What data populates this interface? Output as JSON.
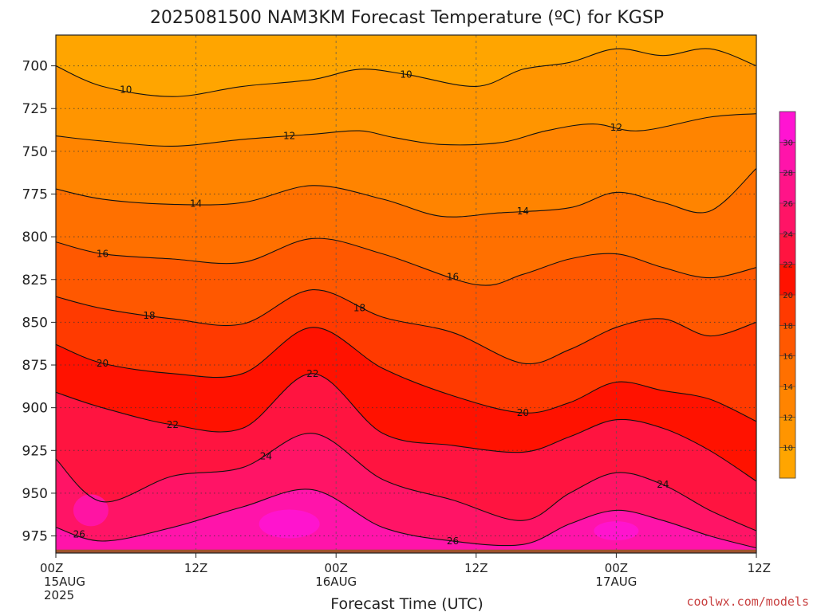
{
  "chart_data": {
    "type": "heatmap",
    "title": "2025081500 NAM3KM Forecast Temperature (ºC) for KGSP",
    "xlabel": "Forecast Time (UTC)",
    "ylabel": "",
    "credit": "coolwx.com/models",
    "y_axis": {
      "inverted": true,
      "range": [
        682,
        985
      ],
      "ticks": [
        "700",
        "725",
        "750",
        "775",
        "800",
        "825",
        "850",
        "875",
        "900",
        "925",
        "950",
        "975"
      ]
    },
    "x_axis": {
      "range_hours": [
        0,
        60
      ],
      "ticks": [
        {
          "hour": 0,
          "line1": "00Z",
          "line2": "15AUG",
          "line3": "2025"
        },
        {
          "hour": 12,
          "line1": "12Z",
          "line2": "",
          "line3": ""
        },
        {
          "hour": 24,
          "line1": "00Z",
          "line2": "16AUG",
          "line3": ""
        },
        {
          "hour": 36,
          "line1": "12Z",
          "line2": "",
          "line3": ""
        },
        {
          "hour": 48,
          "line1": "00Z",
          "line2": "17AUG",
          "line3": ""
        },
        {
          "hour": 60,
          "line1": "12Z",
          "line2": "",
          "line3": ""
        }
      ]
    },
    "grid": true,
    "colorbar": {
      "placement": "right",
      "levels": [
        8,
        10,
        12,
        14,
        16,
        18,
        20,
        22,
        24,
        26,
        28,
        30,
        32
      ],
      "tick_labels": [
        "10",
        "12",
        "14",
        "16",
        "18",
        "20",
        "22",
        "24",
        "26",
        "28",
        "30"
      ],
      "colors": [
        "#ffa500",
        "#ff9500",
        "#ff8400",
        "#ff7000",
        "#ff5800",
        "#ff3a00",
        "#ff1200",
        "#ff1440",
        "#ff1466",
        "#ff1488",
        "#ff14aa",
        "#ff14d2"
      ]
    },
    "surface_color": "#a0522d",
    "isotherms": [
      {
        "label": "10",
        "values": [
          [
            0,
            700
          ],
          [
            4,
            712
          ],
          [
            10,
            718
          ],
          [
            16,
            712
          ],
          [
            22,
            708
          ],
          [
            26,
            702
          ],
          [
            30,
            705
          ],
          [
            36,
            712
          ],
          [
            40,
            702
          ],
          [
            44,
            698
          ],
          [
            48,
            690
          ],
          [
            52,
            694
          ],
          [
            56,
            690
          ],
          [
            60,
            700
          ]
        ]
      },
      {
        "label": "12",
        "values": [
          [
            0,
            741
          ],
          [
            4,
            744
          ],
          [
            10,
            747
          ],
          [
            16,
            743
          ],
          [
            22,
            740
          ],
          [
            26,
            738
          ],
          [
            29,
            742
          ],
          [
            33,
            746
          ],
          [
            38,
            745
          ],
          [
            42,
            738
          ],
          [
            46,
            734
          ],
          [
            50,
            738
          ],
          [
            56,
            730
          ],
          [
            60,
            728
          ]
        ]
      },
      {
        "label": "14",
        "values": [
          [
            0,
            772
          ],
          [
            4,
            778
          ],
          [
            10,
            781
          ],
          [
            16,
            780
          ],
          [
            22,
            770
          ],
          [
            28,
            778
          ],
          [
            33,
            788
          ],
          [
            38,
            786
          ],
          [
            44,
            783
          ],
          [
            48,
            774
          ],
          [
            52,
            780
          ],
          [
            56,
            785
          ],
          [
            60,
            760
          ]
        ]
      },
      {
        "label": "16",
        "values": [
          [
            0,
            803
          ],
          [
            4,
            810
          ],
          [
            10,
            813
          ],
          [
            16,
            815
          ],
          [
            22,
            801
          ],
          [
            28,
            810
          ],
          [
            36,
            828
          ],
          [
            40,
            822
          ],
          [
            44,
            813
          ],
          [
            48,
            810
          ],
          [
            52,
            818
          ],
          [
            56,
            824
          ],
          [
            60,
            818
          ]
        ]
      },
      {
        "label": "18",
        "values": [
          [
            0,
            835
          ],
          [
            4,
            842
          ],
          [
            10,
            848
          ],
          [
            16,
            851
          ],
          [
            22,
            831
          ],
          [
            28,
            847
          ],
          [
            34,
            856
          ],
          [
            40,
            874
          ],
          [
            44,
            866
          ],
          [
            48,
            853
          ],
          [
            52,
            848
          ],
          [
            56,
            858
          ],
          [
            60,
            850
          ]
        ]
      },
      {
        "label": "20",
        "values": [
          [
            0,
            863
          ],
          [
            4,
            874
          ],
          [
            10,
            880
          ],
          [
            16,
            880
          ],
          [
            22,
            853
          ],
          [
            28,
            877
          ],
          [
            34,
            893
          ],
          [
            40,
            903
          ],
          [
            44,
            897
          ],
          [
            48,
            885
          ],
          [
            52,
            890
          ],
          [
            56,
            895
          ],
          [
            60,
            908
          ]
        ]
      },
      {
        "label": "22",
        "values": [
          [
            0,
            891
          ],
          [
            4,
            900
          ],
          [
            10,
            910
          ],
          [
            16,
            912
          ],
          [
            22,
            880
          ],
          [
            28,
            915
          ],
          [
            34,
            922
          ],
          [
            40,
            926
          ],
          [
            44,
            917
          ],
          [
            48,
            907
          ],
          [
            52,
            912
          ],
          [
            56,
            925
          ],
          [
            60,
            943
          ]
        ]
      },
      {
        "label": "24",
        "values": [
          [
            0,
            930
          ],
          [
            4,
            955
          ],
          [
            10,
            940
          ],
          [
            16,
            935
          ],
          [
            22,
            915
          ],
          [
            28,
            942
          ],
          [
            34,
            954
          ],
          [
            40,
            966
          ],
          [
            44,
            950
          ],
          [
            48,
            938
          ],
          [
            52,
            945
          ],
          [
            56,
            960
          ],
          [
            60,
            972
          ]
        ]
      },
      {
        "label": "26",
        "values": [
          [
            0,
            970
          ],
          [
            4,
            978
          ],
          [
            10,
            970
          ],
          [
            16,
            958
          ],
          [
            22,
            948
          ],
          [
            28,
            970
          ],
          [
            34,
            978
          ],
          [
            40,
            980
          ],
          [
            44,
            968
          ],
          [
            48,
            960
          ],
          [
            52,
            966
          ],
          [
            56,
            975
          ],
          [
            60,
            982
          ]
        ]
      }
    ]
  }
}
